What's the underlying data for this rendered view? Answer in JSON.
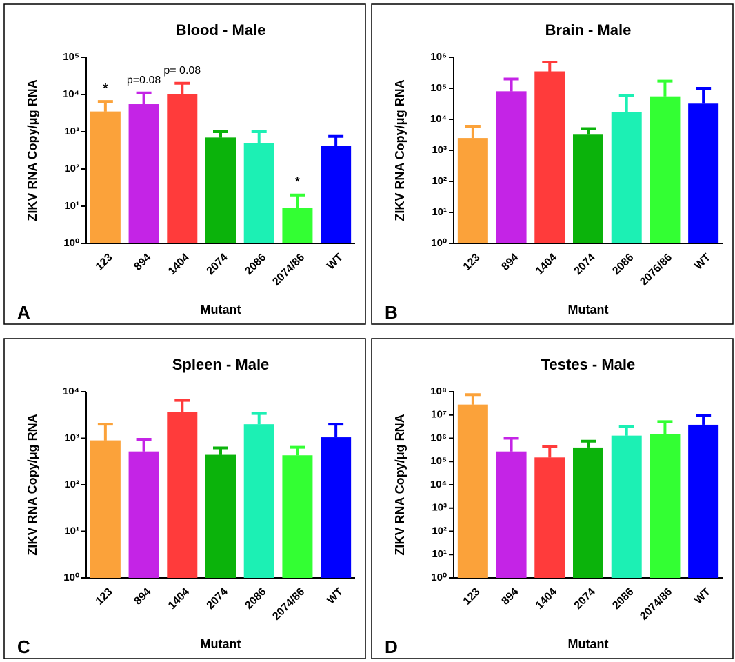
{
  "chart_data": [
    {
      "type": "bar",
      "title": "Blood - Male",
      "panel_label": "A",
      "xlabel": "Mutant",
      "ylabel": "ZIKV RNA Copy/μg RNA",
      "log_scale": true,
      "ylim": [
        1,
        100000
      ],
      "yticks": [
        {
          "value": 1,
          "label": "10⁰"
        },
        {
          "value": 10,
          "label": "10¹"
        },
        {
          "value": 100,
          "label": "10²"
        },
        {
          "value": 1000,
          "label": "10³"
        },
        {
          "value": 10000,
          "label": "10⁴"
        },
        {
          "value": 100000,
          "label": "10⁵"
        }
      ],
      "categories": [
        "123",
        "894",
        "1404",
        "2074",
        "2086",
        "2074/86",
        "WT"
      ],
      "values": [
        3500,
        5500,
        10000,
        700,
        500,
        9,
        420
      ],
      "errors": [
        3000,
        5500,
        10000,
        300,
        500,
        11,
        330
      ],
      "annotations": [
        "*",
        "p=0.08",
        "p= 0.08",
        null,
        null,
        "*",
        null
      ],
      "colors": [
        "#fba23a",
        "#c424e6",
        "#ff3b3b",
        "#0bb30b",
        "#1cf0b4",
        "#33ff33",
        "#0000ff"
      ]
    },
    {
      "type": "bar",
      "title": "Brain - Male",
      "panel_label": "B",
      "xlabel": "Mutant",
      "ylabel": "ZIKV RNA Copy/μg RNA",
      "log_scale": true,
      "ylim": [
        1,
        1000000
      ],
      "yticks": [
        {
          "value": 1,
          "label": "10⁰"
        },
        {
          "value": 10,
          "label": "10¹"
        },
        {
          "value": 100,
          "label": "10²"
        },
        {
          "value": 1000,
          "label": "10³"
        },
        {
          "value": 10000,
          "label": "10⁴"
        },
        {
          "value": 100000,
          "label": "10⁵"
        },
        {
          "value": 1000000,
          "label": "10⁶"
        }
      ],
      "categories": [
        "123",
        "894",
        "1404",
        "2074",
        "2086",
        "2076/86",
        "WT"
      ],
      "values": [
        2500,
        80000,
        350000,
        3200,
        17000,
        55000,
        32000
      ],
      "errors": [
        3500,
        120000,
        350000,
        1800,
        43000,
        115000,
        68000
      ],
      "colors": [
        "#fba23a",
        "#c424e6",
        "#ff3b3b",
        "#0bb30b",
        "#1cf0b4",
        "#33ff33",
        "#0000ff"
      ]
    },
    {
      "type": "bar",
      "title": "Spleen - Male",
      "panel_label": "C",
      "xlabel": "Mutant",
      "ylabel": "ZIKV RNA Copy/μg RNA",
      "log_scale": true,
      "ylim": [
        1,
        10000
      ],
      "yticks": [
        {
          "value": 1,
          "label": "10⁰"
        },
        {
          "value": 10,
          "label": "10¹"
        },
        {
          "value": 100,
          "label": "10²"
        },
        {
          "value": 1000,
          "label": "10³"
        },
        {
          "value": 10000,
          "label": "10⁴"
        }
      ],
      "categories": [
        "123",
        "894",
        "1404",
        "2074",
        "2086",
        "2074/86",
        "WT"
      ],
      "values": [
        900,
        520,
        3700,
        440,
        2000,
        430,
        1050
      ],
      "errors": [
        1100,
        430,
        2800,
        180,
        1400,
        210,
        950
      ],
      "colors": [
        "#fba23a",
        "#c424e6",
        "#ff3b3b",
        "#0bb30b",
        "#1cf0b4",
        "#33ff33",
        "#0000ff"
      ]
    },
    {
      "type": "bar",
      "title": "Testes - Male",
      "panel_label": "D",
      "xlabel": "Mutant",
      "ylabel": "ZIKV RNA Copy/μg RNA",
      "log_scale": true,
      "ylim": [
        1,
        100000000
      ],
      "yticks": [
        {
          "value": 1,
          "label": "10⁰"
        },
        {
          "value": 10,
          "label": "10¹"
        },
        {
          "value": 100,
          "label": "10²"
        },
        {
          "value": 1000,
          "label": "10³"
        },
        {
          "value": 10000,
          "label": "10⁴"
        },
        {
          "value": 100000,
          "label": "10⁵"
        },
        {
          "value": 1000000,
          "label": "10⁶"
        },
        {
          "value": 10000000,
          "label": "10⁷"
        },
        {
          "value": 100000000,
          "label": "10⁸"
        }
      ],
      "categories": [
        "123",
        "894",
        "1404",
        "2074",
        "2086",
        "2074/86",
        "WT"
      ],
      "values": [
        28000000,
        270000,
        150000,
        400000,
        1300000,
        1500000,
        3800000
      ],
      "errors": [
        47000000,
        730000,
        300000,
        350000,
        1900000,
        3700000,
        5700000
      ],
      "colors": [
        "#fba23a",
        "#c424e6",
        "#ff3b3b",
        "#0bb30b",
        "#1cf0b4",
        "#33ff33",
        "#0000ff"
      ]
    }
  ]
}
